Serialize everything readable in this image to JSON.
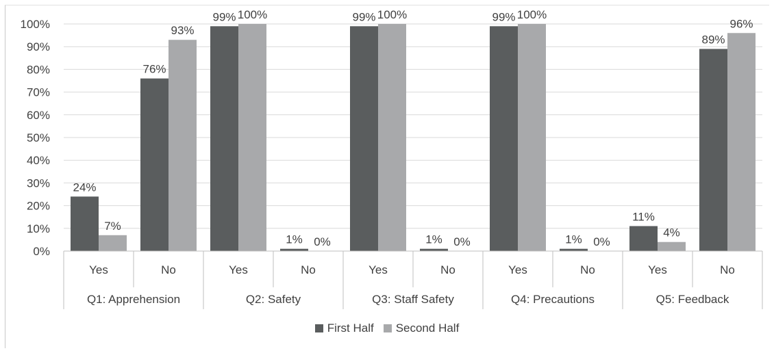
{
  "chart_data": {
    "type": "bar",
    "groups": [
      {
        "label": "Q1: Apprehension",
        "categories": [
          "Yes",
          "No"
        ]
      },
      {
        "label": "Q2: Safety",
        "categories": [
          "Yes",
          "No"
        ]
      },
      {
        "label": "Q3: Staff Safety",
        "categories": [
          "Yes",
          "No"
        ]
      },
      {
        "label": "Q4: Precautions",
        "categories": [
          "Yes",
          "No"
        ]
      },
      {
        "label": "Q5: Feedback",
        "categories": [
          "Yes",
          "No"
        ]
      }
    ],
    "categories": [
      "Yes",
      "No",
      "Yes",
      "No",
      "Yes",
      "No",
      "Yes",
      "No",
      "Yes",
      "No"
    ],
    "series": [
      {
        "name": "First Half",
        "color": "#5a5d5e",
        "values": [
          24,
          76,
          99,
          1,
          99,
          1,
          99,
          1,
          11,
          89
        ],
        "labels": [
          "24%",
          "76%",
          "99%",
          "1%",
          "99%",
          "1%",
          "99%",
          "1%",
          "11%",
          "89%"
        ]
      },
      {
        "name": "Second Half",
        "color": "#a8a9ab",
        "values": [
          7,
          93,
          100,
          0,
          100,
          0,
          100,
          0,
          4,
          96
        ],
        "labels": [
          "7%",
          "93%",
          "100%",
          "0%",
          "100%",
          "0%",
          "100%",
          "0%",
          "4%",
          "96%"
        ]
      }
    ],
    "ylim": [
      0,
      100
    ],
    "yticks": [
      "0%",
      "10%",
      "20%",
      "30%",
      "40%",
      "50%",
      "60%",
      "70%",
      "80%",
      "90%",
      "100%"
    ],
    "grid": true,
    "legend_position": "bottom",
    "title": "",
    "xlabel": "",
    "ylabel": ""
  }
}
